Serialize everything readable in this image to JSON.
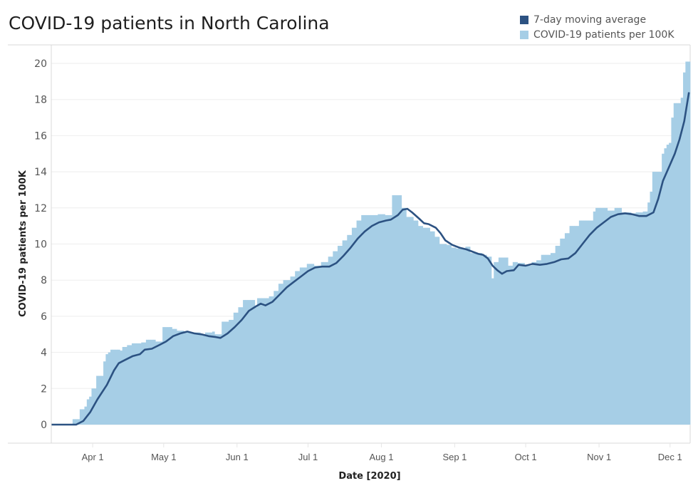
{
  "chart_data": {
    "type": "bar+line",
    "title": "COVID-19 patients in North Carolina",
    "xlabel": "Date [2020]",
    "ylabel": "COVID-19 patients per 100K",
    "ylim": [
      -1,
      21
    ],
    "yticks": [
      0,
      2,
      4,
      6,
      8,
      10,
      12,
      14,
      16,
      18,
      20
    ],
    "xticks": [
      {
        "label": "Apr 1",
        "date": "2020-04-01"
      },
      {
        "label": "May 1",
        "date": "2020-05-01"
      },
      {
        "label": "Jun 1",
        "date": "2020-06-01"
      },
      {
        "label": "Jul 1",
        "date": "2020-07-01"
      },
      {
        "label": "Aug 1",
        "date": "2020-08-01"
      },
      {
        "label": "Sep 1",
        "date": "2020-09-01"
      },
      {
        "label": "Oct 1",
        "date": "2020-10-01"
      },
      {
        "label": "Nov 1",
        "date": "2020-11-01"
      },
      {
        "label": "Dec 1",
        "date": "2020-12-01"
      }
    ],
    "xrange": [
      "2020-03-15",
      "2020-12-09"
    ],
    "grid": true,
    "legend_position": "top-right",
    "series": [
      {
        "name": "7-day moving average",
        "type": "line",
        "color": "#2c5282",
        "points": [
          [
            "2020-03-15",
            0
          ],
          [
            "2020-03-25",
            0
          ],
          [
            "2020-03-28",
            0.2
          ],
          [
            "2020-03-31",
            0.7
          ],
          [
            "2020-04-03",
            1.4
          ],
          [
            "2020-04-07",
            2.2
          ],
          [
            "2020-04-10",
            3.0
          ],
          [
            "2020-04-12",
            3.4
          ],
          [
            "2020-04-15",
            3.6
          ],
          [
            "2020-04-18",
            3.8
          ],
          [
            "2020-04-21",
            3.9
          ],
          [
            "2020-04-23",
            4.15
          ],
          [
            "2020-04-26",
            4.2
          ],
          [
            "2020-04-29",
            4.4
          ],
          [
            "2020-05-02",
            4.6
          ],
          [
            "2020-05-05",
            4.9
          ],
          [
            "2020-05-08",
            5.05
          ],
          [
            "2020-05-11",
            5.15
          ],
          [
            "2020-05-14",
            5.05
          ],
          [
            "2020-05-17",
            5.0
          ],
          [
            "2020-05-20",
            4.9
          ],
          [
            "2020-05-23",
            4.85
          ],
          [
            "2020-05-25",
            4.8
          ],
          [
            "2020-05-28",
            5.05
          ],
          [
            "2020-05-31",
            5.4
          ],
          [
            "2020-06-03",
            5.8
          ],
          [
            "2020-06-06",
            6.3
          ],
          [
            "2020-06-09",
            6.55
          ],
          [
            "2020-06-11",
            6.7
          ],
          [
            "2020-06-13",
            6.6
          ],
          [
            "2020-06-16",
            6.8
          ],
          [
            "2020-06-19",
            7.2
          ],
          [
            "2020-06-22",
            7.6
          ],
          [
            "2020-06-25",
            7.9
          ],
          [
            "2020-06-28",
            8.2
          ],
          [
            "2020-07-01",
            8.5
          ],
          [
            "2020-07-04",
            8.7
          ],
          [
            "2020-07-07",
            8.75
          ],
          [
            "2020-07-10",
            8.75
          ],
          [
            "2020-07-13",
            8.95
          ],
          [
            "2020-07-16",
            9.35
          ],
          [
            "2020-07-19",
            9.8
          ],
          [
            "2020-07-22",
            10.3
          ],
          [
            "2020-07-25",
            10.7
          ],
          [
            "2020-07-28",
            11.0
          ],
          [
            "2020-07-31",
            11.2
          ],
          [
            "2020-08-03",
            11.3
          ],
          [
            "2020-08-05",
            11.35
          ],
          [
            "2020-08-08",
            11.6
          ],
          [
            "2020-08-10",
            11.9
          ],
          [
            "2020-08-12",
            11.95
          ],
          [
            "2020-08-14",
            11.75
          ],
          [
            "2020-08-17",
            11.4
          ],
          [
            "2020-08-19",
            11.15
          ],
          [
            "2020-08-21",
            11.1
          ],
          [
            "2020-08-24",
            10.9
          ],
          [
            "2020-08-26",
            10.6
          ],
          [
            "2020-08-28",
            10.2
          ],
          [
            "2020-08-31",
            9.95
          ],
          [
            "2020-09-03",
            9.8
          ],
          [
            "2020-09-06",
            9.7
          ],
          [
            "2020-09-09",
            9.55
          ],
          [
            "2020-09-11",
            9.45
          ],
          [
            "2020-09-13",
            9.4
          ],
          [
            "2020-09-15",
            9.2
          ],
          [
            "2020-09-17",
            8.8
          ],
          [
            "2020-09-19",
            8.55
          ],
          [
            "2020-09-21",
            8.35
          ],
          [
            "2020-09-23",
            8.5
          ],
          [
            "2020-09-26",
            8.55
          ],
          [
            "2020-09-28",
            8.85
          ],
          [
            "2020-10-01",
            8.8
          ],
          [
            "2020-10-04",
            8.9
          ],
          [
            "2020-10-07",
            8.85
          ],
          [
            "2020-10-10",
            8.9
          ],
          [
            "2020-10-13",
            9.0
          ],
          [
            "2020-10-16",
            9.15
          ],
          [
            "2020-10-19",
            9.2
          ],
          [
            "2020-10-22",
            9.5
          ],
          [
            "2020-10-25",
            10.0
          ],
          [
            "2020-10-28",
            10.5
          ],
          [
            "2020-10-31",
            10.9
          ],
          [
            "2020-11-03",
            11.2
          ],
          [
            "2020-11-06",
            11.5
          ],
          [
            "2020-11-09",
            11.65
          ],
          [
            "2020-11-12",
            11.7
          ],
          [
            "2020-11-15",
            11.65
          ],
          [
            "2020-11-18",
            11.55
          ],
          [
            "2020-11-21",
            11.55
          ],
          [
            "2020-11-24",
            11.75
          ],
          [
            "2020-11-26",
            12.5
          ],
          [
            "2020-11-28",
            13.5
          ],
          [
            "2020-12-01",
            14.4
          ],
          [
            "2020-12-03",
            15.0
          ],
          [
            "2020-12-05",
            15.8
          ],
          [
            "2020-12-07",
            16.8
          ],
          [
            "2020-12-09",
            18.4
          ]
        ]
      },
      {
        "name": "COVID-19 patients per 100K",
        "type": "bar",
        "color": "#a6cee6",
        "points": [
          [
            "2020-03-15",
            0
          ],
          [
            "2020-03-24",
            0.3
          ],
          [
            "2020-03-27",
            0.85
          ],
          [
            "2020-03-29",
            1.0
          ],
          [
            "2020-03-30",
            1.4
          ],
          [
            "2020-03-31",
            1.55
          ],
          [
            "2020-04-01",
            2.0
          ],
          [
            "2020-04-03",
            2.7
          ],
          [
            "2020-04-06",
            3.5
          ],
          [
            "2020-04-07",
            3.9
          ],
          [
            "2020-04-08",
            4.0
          ],
          [
            "2020-04-09",
            4.15
          ],
          [
            "2020-04-13",
            4.1
          ],
          [
            "2020-04-14",
            4.3
          ],
          [
            "2020-04-16",
            4.4
          ],
          [
            "2020-04-18",
            4.5
          ],
          [
            "2020-04-22",
            4.55
          ],
          [
            "2020-04-24",
            4.7
          ],
          [
            "2020-04-28",
            4.6
          ],
          [
            "2020-05-01",
            5.4
          ],
          [
            "2020-05-05",
            5.3
          ],
          [
            "2020-05-07",
            5.2
          ],
          [
            "2020-05-10",
            5.1
          ],
          [
            "2020-05-13",
            5.1
          ],
          [
            "2020-05-17",
            5.0
          ],
          [
            "2020-05-19",
            5.1
          ],
          [
            "2020-05-22",
            5.15
          ],
          [
            "2020-05-23",
            5.0
          ],
          [
            "2020-05-26",
            5.7
          ],
          [
            "2020-05-29",
            5.8
          ],
          [
            "2020-05-31",
            6.2
          ],
          [
            "2020-06-02",
            6.5
          ],
          [
            "2020-06-04",
            6.9
          ],
          [
            "2020-06-09",
            6.5
          ],
          [
            "2020-06-10",
            7.0
          ],
          [
            "2020-06-15",
            7.1
          ],
          [
            "2020-06-17",
            7.4
          ],
          [
            "2020-06-19",
            7.8
          ],
          [
            "2020-06-21",
            8.0
          ],
          [
            "2020-06-24",
            8.2
          ],
          [
            "2020-06-26",
            8.5
          ],
          [
            "2020-06-28",
            8.7
          ],
          [
            "2020-07-01",
            8.9
          ],
          [
            "2020-07-04",
            8.8
          ],
          [
            "2020-07-07",
            9.0
          ],
          [
            "2020-07-10",
            9.3
          ],
          [
            "2020-07-12",
            9.6
          ],
          [
            "2020-07-14",
            9.9
          ],
          [
            "2020-07-16",
            10.2
          ],
          [
            "2020-07-18",
            10.5
          ],
          [
            "2020-07-20",
            10.9
          ],
          [
            "2020-07-22",
            11.3
          ],
          [
            "2020-07-24",
            11.6
          ],
          [
            "2020-07-28",
            11.6
          ],
          [
            "2020-07-31",
            11.65
          ],
          [
            "2020-08-03",
            11.6
          ],
          [
            "2020-08-06",
            12.7
          ],
          [
            "2020-08-10",
            12.0
          ],
          [
            "2020-08-12",
            11.5
          ],
          [
            "2020-08-15",
            11.3
          ],
          [
            "2020-08-17",
            11.0
          ],
          [
            "2020-08-19",
            10.9
          ],
          [
            "2020-08-22",
            10.7
          ],
          [
            "2020-08-24",
            10.4
          ],
          [
            "2020-08-26",
            10.0
          ],
          [
            "2020-08-29",
            9.95
          ],
          [
            "2020-08-31",
            9.8
          ],
          [
            "2020-09-02",
            9.75
          ],
          [
            "2020-09-06",
            9.85
          ],
          [
            "2020-09-08",
            9.5
          ],
          [
            "2020-09-13",
            9.4
          ],
          [
            "2020-09-15",
            9.3
          ],
          [
            "2020-09-17",
            8.1
          ],
          [
            "2020-09-18",
            9.0
          ],
          [
            "2020-09-20",
            9.25
          ],
          [
            "2020-09-24",
            8.8
          ],
          [
            "2020-09-26",
            9.0
          ],
          [
            "2020-09-28",
            8.95
          ],
          [
            "2020-10-01",
            8.8
          ],
          [
            "2020-10-04",
            9.0
          ],
          [
            "2020-10-06",
            9.1
          ],
          [
            "2020-10-08",
            9.4
          ],
          [
            "2020-10-12",
            9.5
          ],
          [
            "2020-10-14",
            9.9
          ],
          [
            "2020-10-16",
            10.3
          ],
          [
            "2020-10-18",
            10.6
          ],
          [
            "2020-10-20",
            11.0
          ],
          [
            "2020-10-24",
            11.3
          ],
          [
            "2020-10-28",
            11.3
          ],
          [
            "2020-10-30",
            11.8
          ],
          [
            "2020-10-31",
            12.0
          ],
          [
            "2020-11-05",
            11.85
          ],
          [
            "2020-11-08",
            12.0
          ],
          [
            "2020-11-11",
            11.75
          ],
          [
            "2020-11-15",
            11.7
          ],
          [
            "2020-11-17",
            11.75
          ],
          [
            "2020-11-20",
            11.8
          ],
          [
            "2020-11-22",
            12.3
          ],
          [
            "2020-11-23",
            12.9
          ],
          [
            "2020-11-24",
            14.0
          ],
          [
            "2020-11-28",
            15.0
          ],
          [
            "2020-11-29",
            15.3
          ],
          [
            "2020-11-30",
            15.5
          ],
          [
            "2020-12-01",
            15.6
          ],
          [
            "2020-12-02",
            17.0
          ],
          [
            "2020-12-03",
            17.8
          ],
          [
            "2020-12-06",
            18.1
          ],
          [
            "2020-12-07",
            19.5
          ],
          [
            "2020-12-08",
            20.1
          ]
        ]
      }
    ]
  }
}
